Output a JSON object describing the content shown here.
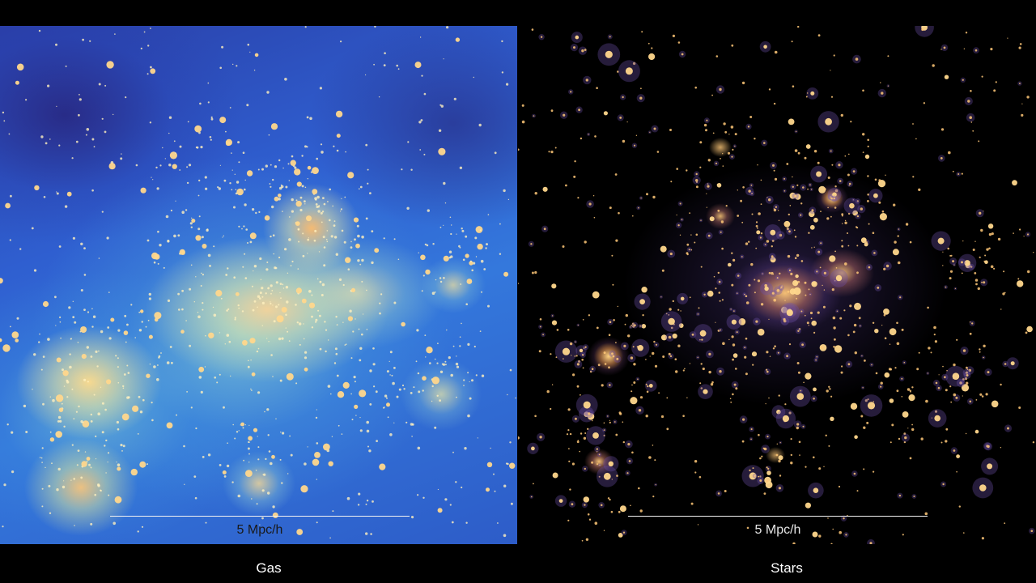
{
  "panels": [
    {
      "id": "gas",
      "caption": "Gas",
      "scale_label": "5 Mpc/h"
    },
    {
      "id": "stars",
      "caption": "Stars",
      "scale_label": "5 Mpc/h"
    }
  ],
  "colors": {
    "background": "#000000",
    "gas_low": "#2a3fa8",
    "gas_mid": "#3478dc",
    "gas_high": "#f5e3a0",
    "star_core": "#ffd282",
    "star_halo": "#5a3c82"
  }
}
